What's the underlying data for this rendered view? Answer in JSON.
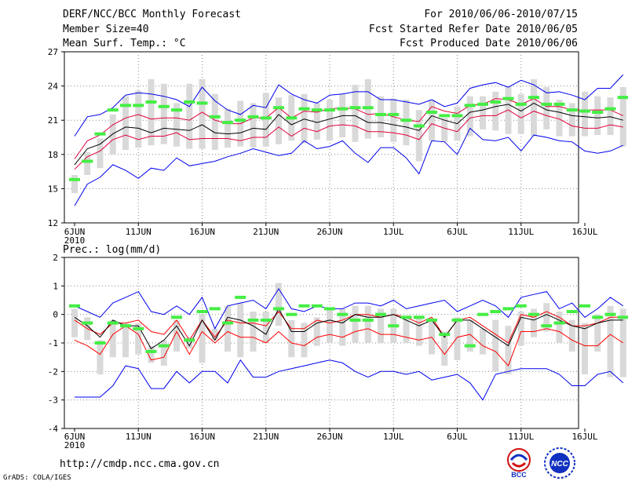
{
  "header": {
    "title": "DERF/NCC/BCC Monthly Forecast",
    "member_size": "Member Size=40",
    "variable": "Mean Surf. Temp.: °C",
    "forecast_period": "For 2010/06/06-2010/07/15",
    "started_refer": "Fcst Started Refer Date 2010/06/05",
    "produced": "Fcst Produced Date 2010/06/06"
  },
  "footer": {
    "url": "http://cmdp.ncc.cma.gov.cn",
    "credit": "GrADS: COLA/IGES",
    "logo_bcc": "BCC",
    "logo_ncc": "NCC"
  },
  "colors": {
    "mean": "#000000",
    "spread": "#e0003a",
    "extreme": "#0000ee",
    "box": "#d9d9d9",
    "median": "#44ee44",
    "grid": "#888888"
  },
  "chart_data": [
    {
      "type": "line",
      "title": "Mean Surf. Temp.: °C",
      "xlabel": "",
      "ylabel": "",
      "ylim": [
        12,
        27
      ],
      "yticks": [
        12,
        15,
        18,
        21,
        24,
        27
      ],
      "xtick_labels": [
        "6JUN",
        "11JUN",
        "16JUN",
        "21JUN",
        "26JUN",
        "1JUL",
        "6JUL",
        "11JUL",
        "16JUL"
      ],
      "xtick_sub": "2010",
      "series": [
        {
          "name": "max",
          "color": "#0000ee",
          "values": [
            19.6,
            21.3,
            21.5,
            22.1,
            23.2,
            23.4,
            23.3,
            23.1,
            22.8,
            22.2,
            23.9,
            22.7,
            21.9,
            21.5,
            22.3,
            22.1,
            24.1,
            23.3,
            22.8,
            22.5,
            23.2,
            23.3,
            23.5,
            23.5,
            22.8,
            22.8,
            22.6,
            22.4,
            22.8,
            22.2,
            22.5,
            23.8,
            24.1,
            24.3,
            23.9,
            24.5,
            24.1,
            23.4,
            23.5,
            23.2,
            22.8,
            23.8,
            23.8,
            25.0
          ]
        },
        {
          "name": "upper",
          "color": "#e0003a",
          "values": [
            17.6,
            19.2,
            19.7,
            20.6,
            21.2,
            21.5,
            21.1,
            21.2,
            21.2,
            21.0,
            21.7,
            21.0,
            20.7,
            20.7,
            21.2,
            21.2,
            22.1,
            21.2,
            21.8,
            21.7,
            22.0,
            22.1,
            22.0,
            21.5,
            21.6,
            21.3,
            21.0,
            20.9,
            22.2,
            21.8,
            21.6,
            22.3,
            22.4,
            22.9,
            22.8,
            22.4,
            22.9,
            22.2,
            22.2,
            21.9,
            21.9,
            21.9,
            21.9,
            21.4
          ]
        },
        {
          "name": "mean",
          "color": "#000000",
          "values": [
            17.1,
            18.5,
            18.9,
            19.8,
            20.4,
            20.3,
            19.9,
            20.3,
            20.2,
            20.1,
            20.6,
            19.9,
            19.8,
            19.9,
            20.3,
            20.2,
            21.5,
            20.6,
            21.1,
            20.8,
            21.1,
            21.4,
            21.4,
            20.8,
            20.8,
            20.6,
            20.4,
            20.1,
            21.4,
            21.0,
            20.7,
            21.7,
            21.9,
            22.2,
            22.4,
            21.8,
            22.5,
            21.9,
            21.7,
            21.4,
            21.3,
            21.2,
            21.3,
            21.0
          ]
        },
        {
          "name": "lower",
          "color": "#e0003a",
          "values": [
            16.7,
            17.8,
            18.3,
            19.3,
            19.7,
            19.3,
            19.6,
            19.6,
            19.9,
            19.3,
            19.4,
            19.4,
            19.4,
            19.2,
            19.5,
            19.5,
            20.4,
            19.6,
            20.3,
            20.0,
            20.5,
            20.6,
            20.5,
            20.0,
            20.0,
            19.9,
            19.7,
            19.3,
            20.7,
            20.3,
            20.0,
            21.2,
            21.4,
            21.4,
            21.9,
            21.2,
            21.8,
            21.4,
            21.1,
            20.5,
            20.3,
            20.3,
            20.6,
            20.4
          ]
        },
        {
          "name": "min",
          "color": "#0000ee",
          "values": [
            13.5,
            15.4,
            16.0,
            17.1,
            16.6,
            15.9,
            16.8,
            16.6,
            17.7,
            17.0,
            17.2,
            17.4,
            17.8,
            18.1,
            18.5,
            18.2,
            17.9,
            18.1,
            19.2,
            18.5,
            18.7,
            19.2,
            18.1,
            17.3,
            18.6,
            18.6,
            17.7,
            16.3,
            19.2,
            19.1,
            18.0,
            20.3,
            19.3,
            19.2,
            19.5,
            18.3,
            19.7,
            19.5,
            19.2,
            19.1,
            18.3,
            18.1,
            18.3,
            18.8
          ]
        }
      ],
      "boxes": {
        "low": [
          14.6,
          16.2,
          16.8,
          18.0,
          18.4,
          18.6,
          18.8,
          18.9,
          18.7,
          18.5,
          18.5,
          18.4,
          18.6,
          18.7,
          18.6,
          18.7,
          18.9,
          19.2,
          19.0,
          19.3,
          19.2,
          19.5,
          19.1,
          19.4,
          19.5,
          19.1,
          18.8,
          17.4,
          19.2,
          19.1,
          19.2,
          19.6,
          20.2,
          20.1,
          19.8,
          19.8,
          19.6,
          20.2,
          19.6,
          19.6,
          19.6,
          19.7,
          19.7,
          18.7
        ],
        "high": [
          16.2,
          18.2,
          19.4,
          21.5,
          23.1,
          23.6,
          24.6,
          24.2,
          22.5,
          24.2,
          24.6,
          23.3,
          22.0,
          22.7,
          22.5,
          23.4,
          23.0,
          23.2,
          23.3,
          22.5,
          22.8,
          23.3,
          24.1,
          24.6,
          23.1,
          22.9,
          22.8,
          21.9,
          22.8,
          21.2,
          22.2,
          23.1,
          23.1,
          23.5,
          24.0,
          23.3,
          24.6,
          23.9,
          22.8,
          22.5,
          23.5,
          23.1,
          23.0,
          23.9
        ],
        "median": [
          15.8,
          17.4,
          19.8,
          21.9,
          22.3,
          22.3,
          22.6,
          22.2,
          21.9,
          22.6,
          22.5,
          21.3,
          20.8,
          21.0,
          21.3,
          21.2,
          22.1,
          21.2,
          22.0,
          21.9,
          21.9,
          22.0,
          22.1,
          22.1,
          21.5,
          21.5,
          21.0,
          20.5,
          21.7,
          21.4,
          21.4,
          22.3,
          22.4,
          22.6,
          22.9,
          22.4,
          23.0,
          22.4,
          22.4,
          21.9,
          21.8,
          21.7,
          22.0,
          23.0
        ]
      }
    },
    {
      "type": "line",
      "title": "Prec.: log(mm/d)",
      "xlabel": "",
      "ylabel": "",
      "ylim": [
        -4,
        2
      ],
      "yticks": [
        -4,
        -3,
        -2,
        -1,
        0,
        1,
        2
      ],
      "xtick_labels": [
        "6JUN",
        "11JUN",
        "16JUN",
        "21JUN",
        "26JUN",
        "1JUL",
        "6JUL",
        "11JUL",
        "16JUL"
      ],
      "xtick_sub": "2010",
      "series": [
        {
          "name": "max",
          "color": "#0000ee",
          "values": [
            0.3,
            0.1,
            -0.1,
            0.4,
            0.6,
            0.8,
            0.1,
            0.0,
            0.3,
            0.0,
            0.6,
            -0.5,
            0.3,
            0.4,
            0.5,
            0.2,
            0.9,
            0.2,
            0.1,
            0.3,
            0.2,
            0.2,
            0.4,
            0.4,
            0.3,
            0.5,
            0.2,
            0.3,
            0.4,
            0.5,
            0.1,
            0.3,
            0.5,
            0.3,
            -0.1,
            0.6,
            0.7,
            0.8,
            0.2,
            0.4,
            -0.1,
            0.2,
            0.6,
            0.3
          ]
        },
        {
          "name": "upper",
          "color": "#ff0000",
          "values": [
            -0.2,
            -0.5,
            -0.7,
            -0.3,
            -0.3,
            -0.2,
            -0.6,
            -0.7,
            -0.2,
            -0.9,
            -0.2,
            -0.8,
            -0.2,
            -0.3,
            -0.3,
            -0.4,
            0.1,
            -0.5,
            -0.5,
            -0.2,
            -0.3,
            -0.2,
            0.0,
            0.0,
            -0.1,
            0.0,
            -0.1,
            -0.3,
            -0.1,
            -0.8,
            -0.2,
            -0.1,
            -0.4,
            -0.7,
            -1.0,
            0.0,
            -0.1,
            0.1,
            -0.1,
            -0.4,
            -0.4,
            -0.3,
            -0.1,
            -0.1
          ]
        },
        {
          "name": "mean",
          "color": "#000000",
          "values": [
            -0.1,
            -0.4,
            -0.8,
            -0.2,
            -0.4,
            -0.4,
            -1.2,
            -0.9,
            -0.4,
            -1.1,
            -0.2,
            -0.9,
            -0.1,
            -0.2,
            -0.4,
            -0.7,
            0.2,
            -0.6,
            -0.6,
            -0.3,
            -0.2,
            -0.3,
            0.0,
            -0.1,
            -0.1,
            0.0,
            -0.2,
            -0.4,
            -0.2,
            -0.8,
            -0.2,
            -0.2,
            -0.5,
            -0.8,
            -1.1,
            -0.1,
            -0.2,
            0.0,
            -0.2,
            -0.4,
            -0.5,
            -0.3,
            -0.2,
            -0.2
          ]
        },
        {
          "name": "lower",
          "color": "#ff0000",
          "values": [
            -0.9,
            -1.1,
            -1.4,
            -0.7,
            -0.4,
            -0.7,
            -1.6,
            -1.5,
            -0.6,
            -1.4,
            -0.6,
            -1.0,
            -0.6,
            -0.8,
            -0.8,
            -1.0,
            -0.6,
            -1.0,
            -1.1,
            -0.8,
            -0.7,
            -0.8,
            -0.6,
            -0.5,
            -0.7,
            -0.7,
            -0.8,
            -0.9,
            -0.8,
            -1.4,
            -0.8,
            -0.7,
            -1.1,
            -1.3,
            -1.8,
            -0.6,
            -0.6,
            -0.5,
            -0.6,
            -0.9,
            -1.1,
            -1.1,
            -0.7,
            -1.0
          ]
        },
        {
          "name": "min",
          "color": "#0000ee",
          "values": [
            -2.9,
            -2.9,
            -2.9,
            -2.5,
            -1.8,
            -1.9,
            -2.6,
            -2.6,
            -2.0,
            -2.4,
            -2.0,
            -2.0,
            -2.4,
            -1.6,
            -2.2,
            -2.2,
            -2.0,
            -1.9,
            -1.8,
            -1.7,
            -1.6,
            -1.7,
            -2.0,
            -2.2,
            -2.0,
            -2.0,
            -2.1,
            -2.0,
            -2.3,
            -2.2,
            -2.1,
            -2.4,
            -3.0,
            -2.1,
            -2.0,
            -1.9,
            -1.9,
            -1.9,
            -2.1,
            -2.5,
            -2.5,
            -2.1,
            -2.0,
            -2.4
          ]
        }
      ],
      "boxes": {
        "low": [
          -0.8,
          -0.9,
          -2.1,
          -1.5,
          -1.5,
          -1.4,
          -1.7,
          -1.8,
          -1.3,
          -1.2,
          -1.7,
          -0.9,
          -1.3,
          -1.5,
          -1.3,
          -1.0,
          -0.4,
          -1.5,
          -1.5,
          -1.1,
          -1.0,
          -1.1,
          -1.0,
          -1.0,
          -1.0,
          -1.0,
          -1.0,
          -1.1,
          -1.4,
          -1.8,
          -1.6,
          -1.3,
          -1.4,
          -2.0,
          -2.1,
          -1.1,
          -0.8,
          -0.6,
          -1.0,
          -1.3,
          -2.1,
          -1.3,
          -2.2,
          -2.2
        ],
        "high": [
          0.2,
          -0.1,
          -0.9,
          -0.2,
          -0.3,
          -0.3,
          -1.1,
          -0.9,
          -0.2,
          -0.8,
          0.0,
          -0.5,
          0.3,
          0.4,
          0.1,
          0.1,
          1.1,
          -0.2,
          -0.3,
          -0.1,
          0.2,
          0.2,
          0.3,
          0.3,
          0.2,
          0.2,
          -0.1,
          -0.1,
          -0.2,
          -0.6,
          -0.1,
          -0.2,
          -0.5,
          -0.2,
          -0.4,
          0.1,
          0.2,
          0.4,
          0.1,
          -0.2,
          -0.3,
          0.0,
          0.3,
          0.2
        ],
        "median": [
          0.3,
          -0.3,
          -1.0,
          -0.3,
          -0.4,
          -0.5,
          -1.3,
          -1.1,
          -0.1,
          -0.9,
          0.1,
          0.2,
          -0.3,
          0.6,
          -0.2,
          -0.2,
          0.2,
          0.0,
          0.3,
          0.3,
          0.2,
          0.0,
          -0.2,
          -0.2,
          0.0,
          -0.4,
          -0.1,
          -0.1,
          -0.2,
          -0.7,
          -0.2,
          -1.1,
          0.0,
          0.1,
          0.2,
          0.3,
          0.0,
          -0.4,
          -0.3,
          0.1,
          0.3,
          -0.1,
          0.0,
          -0.1
        ]
      }
    }
  ]
}
